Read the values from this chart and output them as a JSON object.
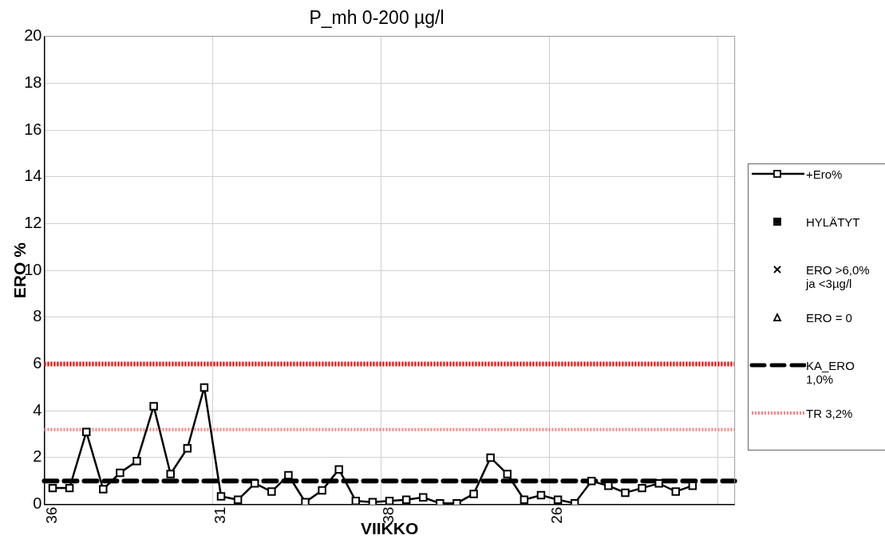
{
  "chart_data": {
    "type": "line",
    "title": "P_mh 0-200 µg/l",
    "xlabel": "VIIKKO",
    "ylabel": "ERO %",
    "categories": [
      "36",
      null,
      null,
      null,
      null,
      null,
      null,
      null,
      null,
      null,
      "31",
      null,
      null,
      null,
      null,
      null,
      null,
      null,
      null,
      null,
      "38",
      null,
      null,
      null,
      null,
      null,
      null,
      null,
      null,
      null,
      "26",
      null,
      null,
      null,
      null,
      null,
      null,
      null,
      null,
      null,
      null
    ],
    "series": [
      {
        "name": "+Ero%",
        "color": "#000000",
        "marker": "square",
        "line_style": "solid",
        "values": [
          0.7,
          0.7,
          3.1,
          0.65,
          1.35,
          1.85,
          4.2,
          1.3,
          2.4,
          5.0,
          0.35,
          0.2,
          0.9,
          0.55,
          1.25,
          0.1,
          0.6,
          1.5,
          0.15,
          0.1,
          0.15,
          0.2,
          0.3,
          0.05,
          0.05,
          0.45,
          2.0,
          1.3,
          0.2,
          0.4,
          0.2,
          0.05,
          1.0,
          0.8,
          0.5,
          0.7,
          0.9,
          0.55,
          0.8,
          null,
          null
        ]
      },
      {
        "name": "HYLÄTYT",
        "color": "#000000",
        "marker": "star",
        "line_style": "none",
        "values": [
          null,
          null,
          null,
          null,
          null,
          null,
          null,
          null,
          null,
          null,
          null,
          null,
          null,
          null,
          null,
          null,
          null,
          null,
          null,
          null,
          null,
          null,
          null,
          null,
          null,
          null,
          null,
          null,
          null,
          null,
          null,
          null,
          null,
          null,
          null,
          null,
          null,
          null,
          null,
          null,
          null
        ]
      },
      {
        "name": "ERO >6,0% ja <3µg/l",
        "color": "#000000",
        "marker": "cross",
        "line_style": "none",
        "values": [
          null,
          null,
          null,
          null,
          null,
          null,
          null,
          null,
          null,
          null,
          null,
          null,
          null,
          null,
          null,
          null,
          null,
          null,
          null,
          null,
          null,
          null,
          null,
          null,
          null,
          null,
          null,
          null,
          null,
          null,
          null,
          null,
          null,
          null,
          null,
          null,
          null,
          null,
          null,
          null,
          null
        ]
      },
      {
        "name": "ERO = 0",
        "color": "#000000",
        "marker": "triangle",
        "line_style": "none",
        "values": [
          null,
          null,
          null,
          null,
          null,
          null,
          null,
          null,
          null,
          null,
          null,
          null,
          null,
          null,
          null,
          null,
          null,
          null,
          null,
          null,
          null,
          null,
          null,
          null,
          null,
          null,
          null,
          null,
          null,
          null,
          null,
          null,
          null,
          null,
          null,
          null,
          null,
          null,
          null,
          null,
          null
        ]
      }
    ],
    "ref_lines": [
      {
        "axis": "y",
        "value": 6,
        "color": "#ff0000",
        "line_style": "dotted"
      },
      {
        "axis": "y",
        "value": 1,
        "label": "KA_ERO 1,0%",
        "color": "#000000",
        "line_style": "dashed"
      },
      {
        "axis": "y",
        "value": 3.2,
        "label": "TR 3,2%",
        "color": "#ff8080",
        "line_style": "dotted"
      }
    ],
    "ylim": [
      0,
      20
    ],
    "yticks": [
      0,
      2,
      4,
      6,
      8,
      10,
      12,
      14,
      16,
      18,
      20
    ],
    "grid": true,
    "legend": "right"
  }
}
